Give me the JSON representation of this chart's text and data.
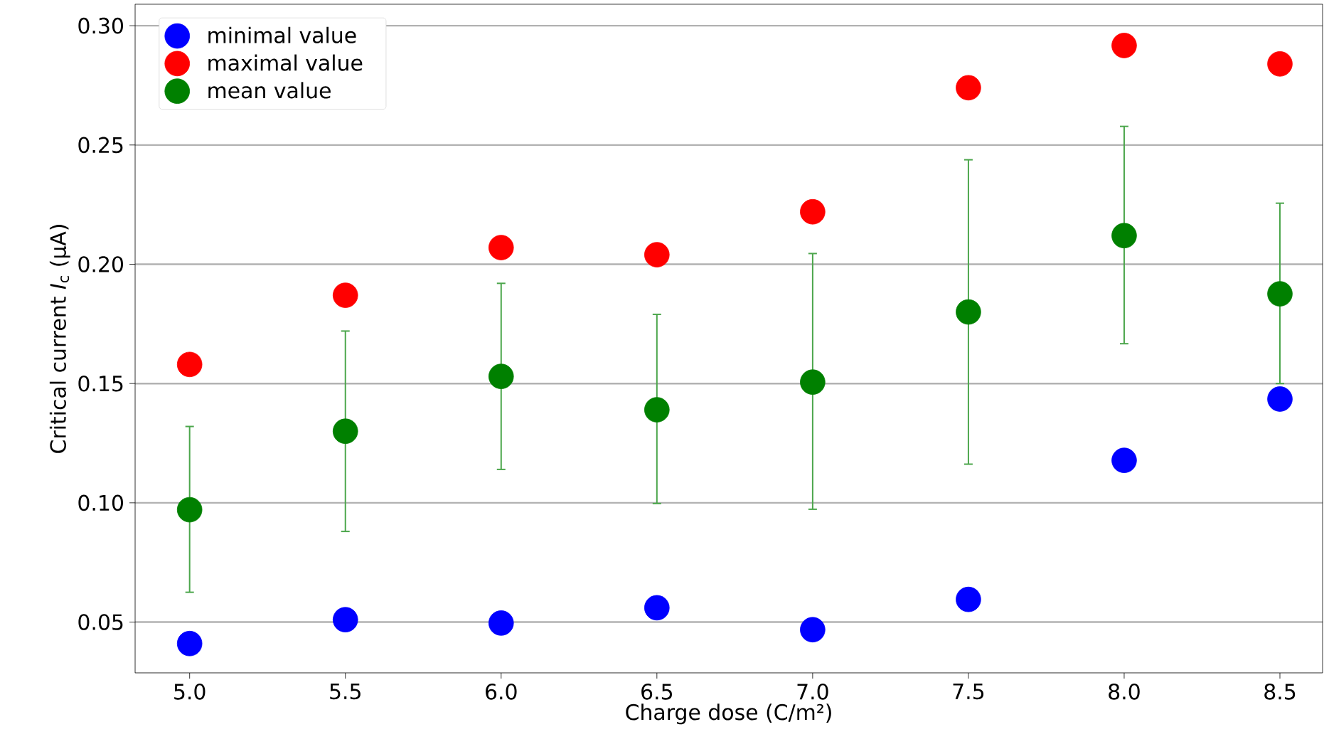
{
  "chart_data": {
    "type": "scatter",
    "xlabel": "Charge dose (C/m²)",
    "ylabel": "Critical current *I*$_{c}$ (μA)",
    "x": [
      5.0,
      5.5,
      6.0,
      6.5,
      7.0,
      7.5,
      8.0,
      8.5
    ],
    "series": [
      {
        "name": "minimal value",
        "color": "#0000ff",
        "values": [
          0.041,
          0.051,
          0.0496,
          0.056,
          0.0468,
          0.0595,
          0.1178,
          0.1435
        ]
      },
      {
        "name": "maximal value",
        "color": "#ff0000",
        "values": [
          0.158,
          0.187,
          0.207,
          0.204,
          0.222,
          0.274,
          0.2917,
          0.284
        ]
      },
      {
        "name": "mean value",
        "color": "#008000",
        "values": [
          0.0971,
          0.13,
          0.153,
          0.139,
          0.1506,
          0.18,
          0.212,
          0.1876
        ],
        "errors": [
          [
            0.0625,
            0.132
          ],
          [
            0.088,
            0.172
          ],
          [
            0.114,
            0.192
          ],
          [
            0.0997,
            0.179
          ],
          [
            0.0973,
            0.2045
          ],
          [
            0.1162,
            0.2438
          ],
          [
            0.1667,
            0.2578
          ],
          [
            0.15,
            0.2256
          ]
        ]
      }
    ],
    "xlim": [
      4.825,
      8.637
    ],
    "ylim": [
      0.0287,
      0.309
    ],
    "xticks": [
      {
        "value": 5.0,
        "label": "5.0"
      },
      {
        "value": 5.5,
        "label": "5.5"
      },
      {
        "value": 6.0,
        "label": "6.0"
      },
      {
        "value": 6.5,
        "label": "6.5"
      },
      {
        "value": 7.0,
        "label": "7.0"
      },
      {
        "value": 7.5,
        "label": "7.5"
      },
      {
        "value": 8.0,
        "label": "8.0"
      },
      {
        "value": 8.5,
        "label": "8.5"
      }
    ],
    "yticks": [
      {
        "value": 0.05,
        "label": "0.05"
      },
      {
        "value": 0.1,
        "label": "0.10"
      },
      {
        "value": 0.15,
        "label": "0.15"
      },
      {
        "value": 0.2,
        "label": "0.20"
      },
      {
        "value": 0.25,
        "label": "0.25"
      },
      {
        "value": 0.3,
        "label": "0.30"
      }
    ],
    "grid": "y",
    "legend": "top left",
    "marker": "circle"
  }
}
